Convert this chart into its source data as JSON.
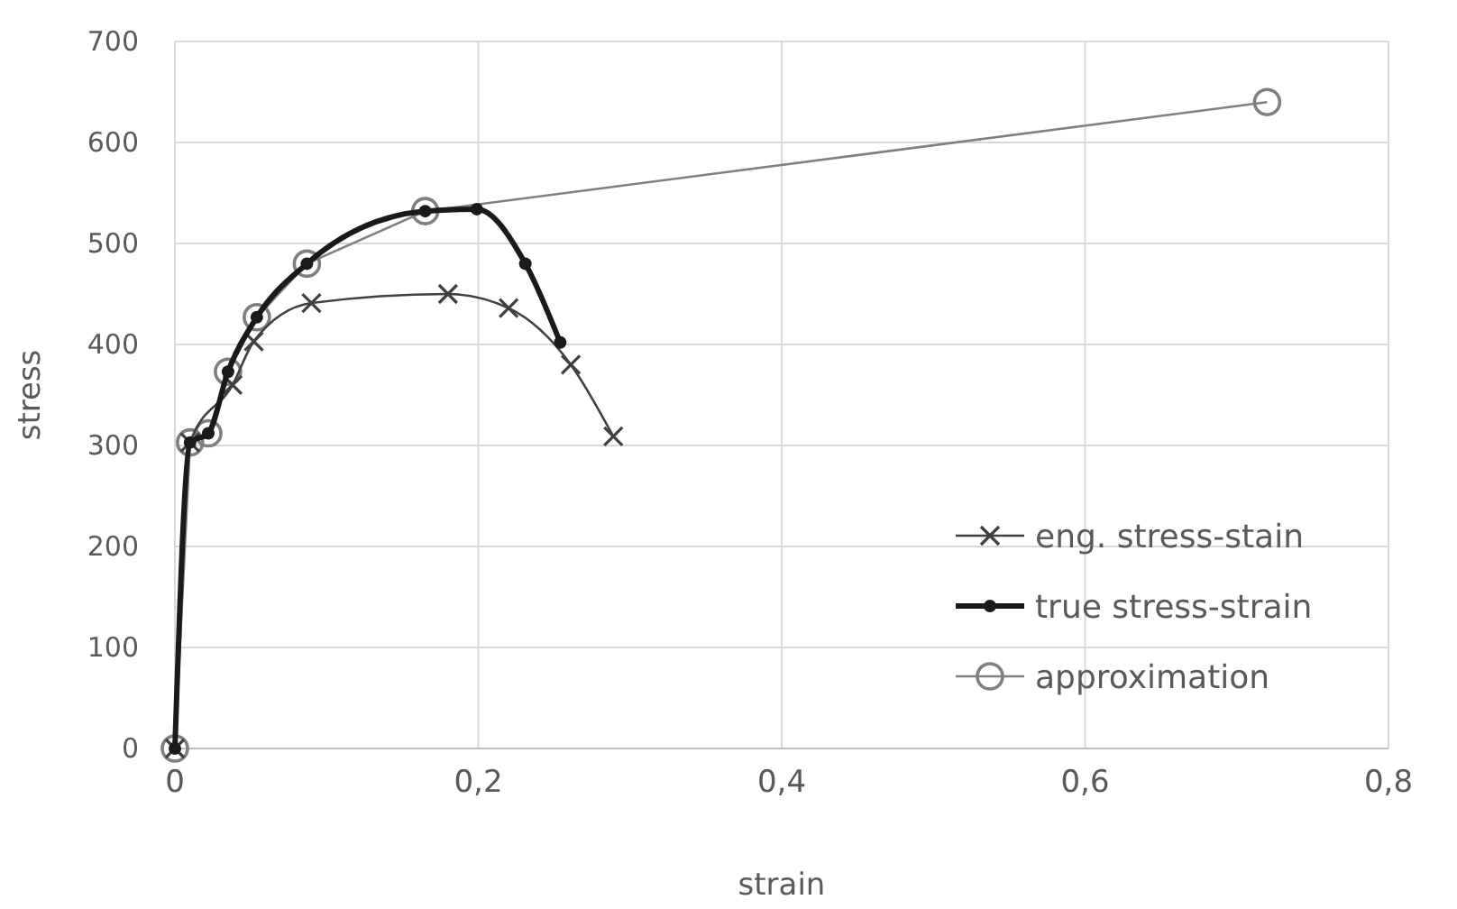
{
  "chart_data": {
    "type": "line",
    "xlabel": "strain",
    "ylabel": "stress",
    "xlim": [
      0,
      0.8
    ],
    "xticks": [
      0,
      {
        "value": 0.2,
        "label": "0,2"
      },
      {
        "value": 0.4,
        "label": "0,4"
      },
      {
        "value": 0.6,
        "label": "0,6"
      },
      {
        "value": 0.8,
        "label": "0,8"
      }
    ],
    "ylim": [
      0,
      700
    ],
    "yticks": [
      0,
      100,
      200,
      300,
      400,
      500,
      600,
      700
    ],
    "grid": true,
    "legend": "right",
    "series": [
      {
        "name": "eng. stress-stain",
        "color": "#404040",
        "marker": "cross",
        "x": [
          0,
          0.01,
          0.022,
          0.038,
          0.052,
          0.09,
          0.18,
          0.22,
          0.261,
          0.289
        ],
        "values": [
          0,
          303,
          null,
          360,
          403,
          441,
          450,
          436,
          380,
          309
        ]
      },
      {
        "name": "true stress-strain",
        "color": "#1a1a1a",
        "marker": "circle",
        "x": [
          0,
          0.01,
          0.022,
          0.035,
          0.054,
          0.087,
          0.165,
          0.199,
          0.231,
          0.254
        ],
        "values": [
          0,
          303,
          312,
          373,
          427,
          480,
          532,
          534,
          480,
          402
        ]
      },
      {
        "name": "approximation",
        "color": "#7f7f7f",
        "marker": "circle",
        "x": [
          0,
          0.01,
          0.022,
          0.035,
          0.054,
          0.087,
          0.165,
          0.72
        ],
        "values": [
          0,
          303,
          312,
          373,
          427,
          480,
          532,
          640
        ]
      }
    ]
  }
}
